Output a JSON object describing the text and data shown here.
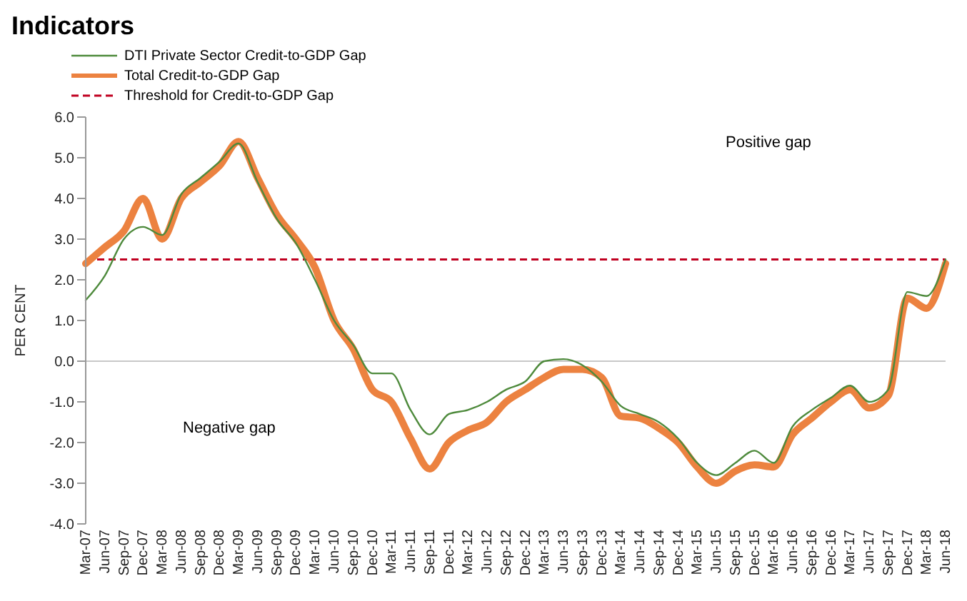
{
  "chart_data": {
    "type": "line",
    "title": "Indicators",
    "ylabel": "PER CENT",
    "legend": "top left",
    "grid": false,
    "marker": "none",
    "categories": [
      "Mar-07",
      "Jun-07",
      "Sep-07",
      "Dec-07",
      "Mar-08",
      "Jun-08",
      "Sep-08",
      "Dec-08",
      "Mar-09",
      "Jun-09",
      "Sep-09",
      "Dec-09",
      "Mar-10",
      "Jun-10",
      "Sep-10",
      "Dec-10",
      "Mar-11",
      "Jun-11",
      "Sep-11",
      "Dec-11",
      "Mar-12",
      "Jun-12",
      "Sep-12",
      "Dec-12",
      "Mar-13",
      "Jun-13",
      "Sep-13",
      "Dec-13",
      "Mar-14",
      "Jun-14",
      "Sep-14",
      "Dec-14",
      "Mar-15",
      "Jun-15",
      "Sep-15",
      "Dec-15",
      "Mar-16",
      "Jun-16",
      "Sep-16",
      "Dec-16",
      "Mar-17",
      "Jun-17",
      "Sep-17",
      "Dec-17",
      "Mar-18",
      "Jun-18"
    ],
    "series": [
      {
        "name": "DTI Private Sector Credit-to-GDP Gap",
        "color": "#4e8a3c",
        "values": [
          1.5,
          2.1,
          3.0,
          3.3,
          3.1,
          4.1,
          4.5,
          4.9,
          5.35,
          4.4,
          3.5,
          2.9,
          2.0,
          1.0,
          0.4,
          -0.3,
          -0.3,
          -1.2,
          -1.8,
          -1.3,
          -1.2,
          -1.0,
          -0.7,
          -0.5,
          0.0,
          0.05,
          -0.1,
          -0.5,
          -1.1,
          -1.3,
          -1.5,
          -1.9,
          -2.5,
          -2.8,
          -2.5,
          -2.2,
          -2.5,
          -1.6,
          -1.2,
          -0.9,
          -0.6,
          -1.0,
          -0.7,
          1.7,
          1.6,
          2.5
        ]
      },
      {
        "name": "Total Credit-to-GDP Gap",
        "color": "#ec8240",
        "values": [
          2.4,
          2.8,
          3.2,
          4.0,
          3.0,
          4.0,
          4.4,
          4.8,
          5.4,
          4.5,
          3.6,
          3.0,
          2.3,
          1.0,
          0.3,
          -0.7,
          -1.0,
          -1.9,
          -2.65,
          -2.0,
          -1.7,
          -1.5,
          -1.0,
          -0.7,
          -0.4,
          -0.2,
          -0.2,
          -0.4,
          -1.35,
          -1.4,
          -1.65,
          -2.0,
          -2.6,
          -3.0,
          -2.7,
          -2.55,
          -2.6,
          -1.8,
          -1.4,
          -1.0,
          -0.7,
          -1.15,
          -0.85,
          1.55,
          1.3,
          2.4
        ]
      }
    ],
    "ylim": [
      -4,
      6
    ],
    "yticks": [
      {
        "value": -4,
        "label": "-4.0"
      },
      {
        "value": -3,
        "label": "-3.0"
      },
      {
        "value": -2,
        "label": "-2.0"
      },
      {
        "value": -1,
        "label": "-1.0"
      },
      {
        "value": 0,
        "label": "0.0"
      },
      {
        "value": 1,
        "label": "1.0"
      },
      {
        "value": 2,
        "label": "2.0"
      },
      {
        "value": 3,
        "label": "3.0"
      },
      {
        "value": 4,
        "label": "4.0"
      },
      {
        "value": 5,
        "label": "5.0"
      },
      {
        "value": 6,
        "label": "6.0"
      }
    ],
    "ref_lines": [
      {
        "axis": "y",
        "value": 2.5,
        "label": "Threshold for Credit-to-GDP Gap",
        "color": "#c00020",
        "line_style": "dashed"
      },
      {
        "axis": "y",
        "value": 0,
        "color": "#c8c8c8",
        "line_style": "solid"
      }
    ],
    "annotations": [
      "Positive gap",
      "Negative gap"
    ]
  }
}
